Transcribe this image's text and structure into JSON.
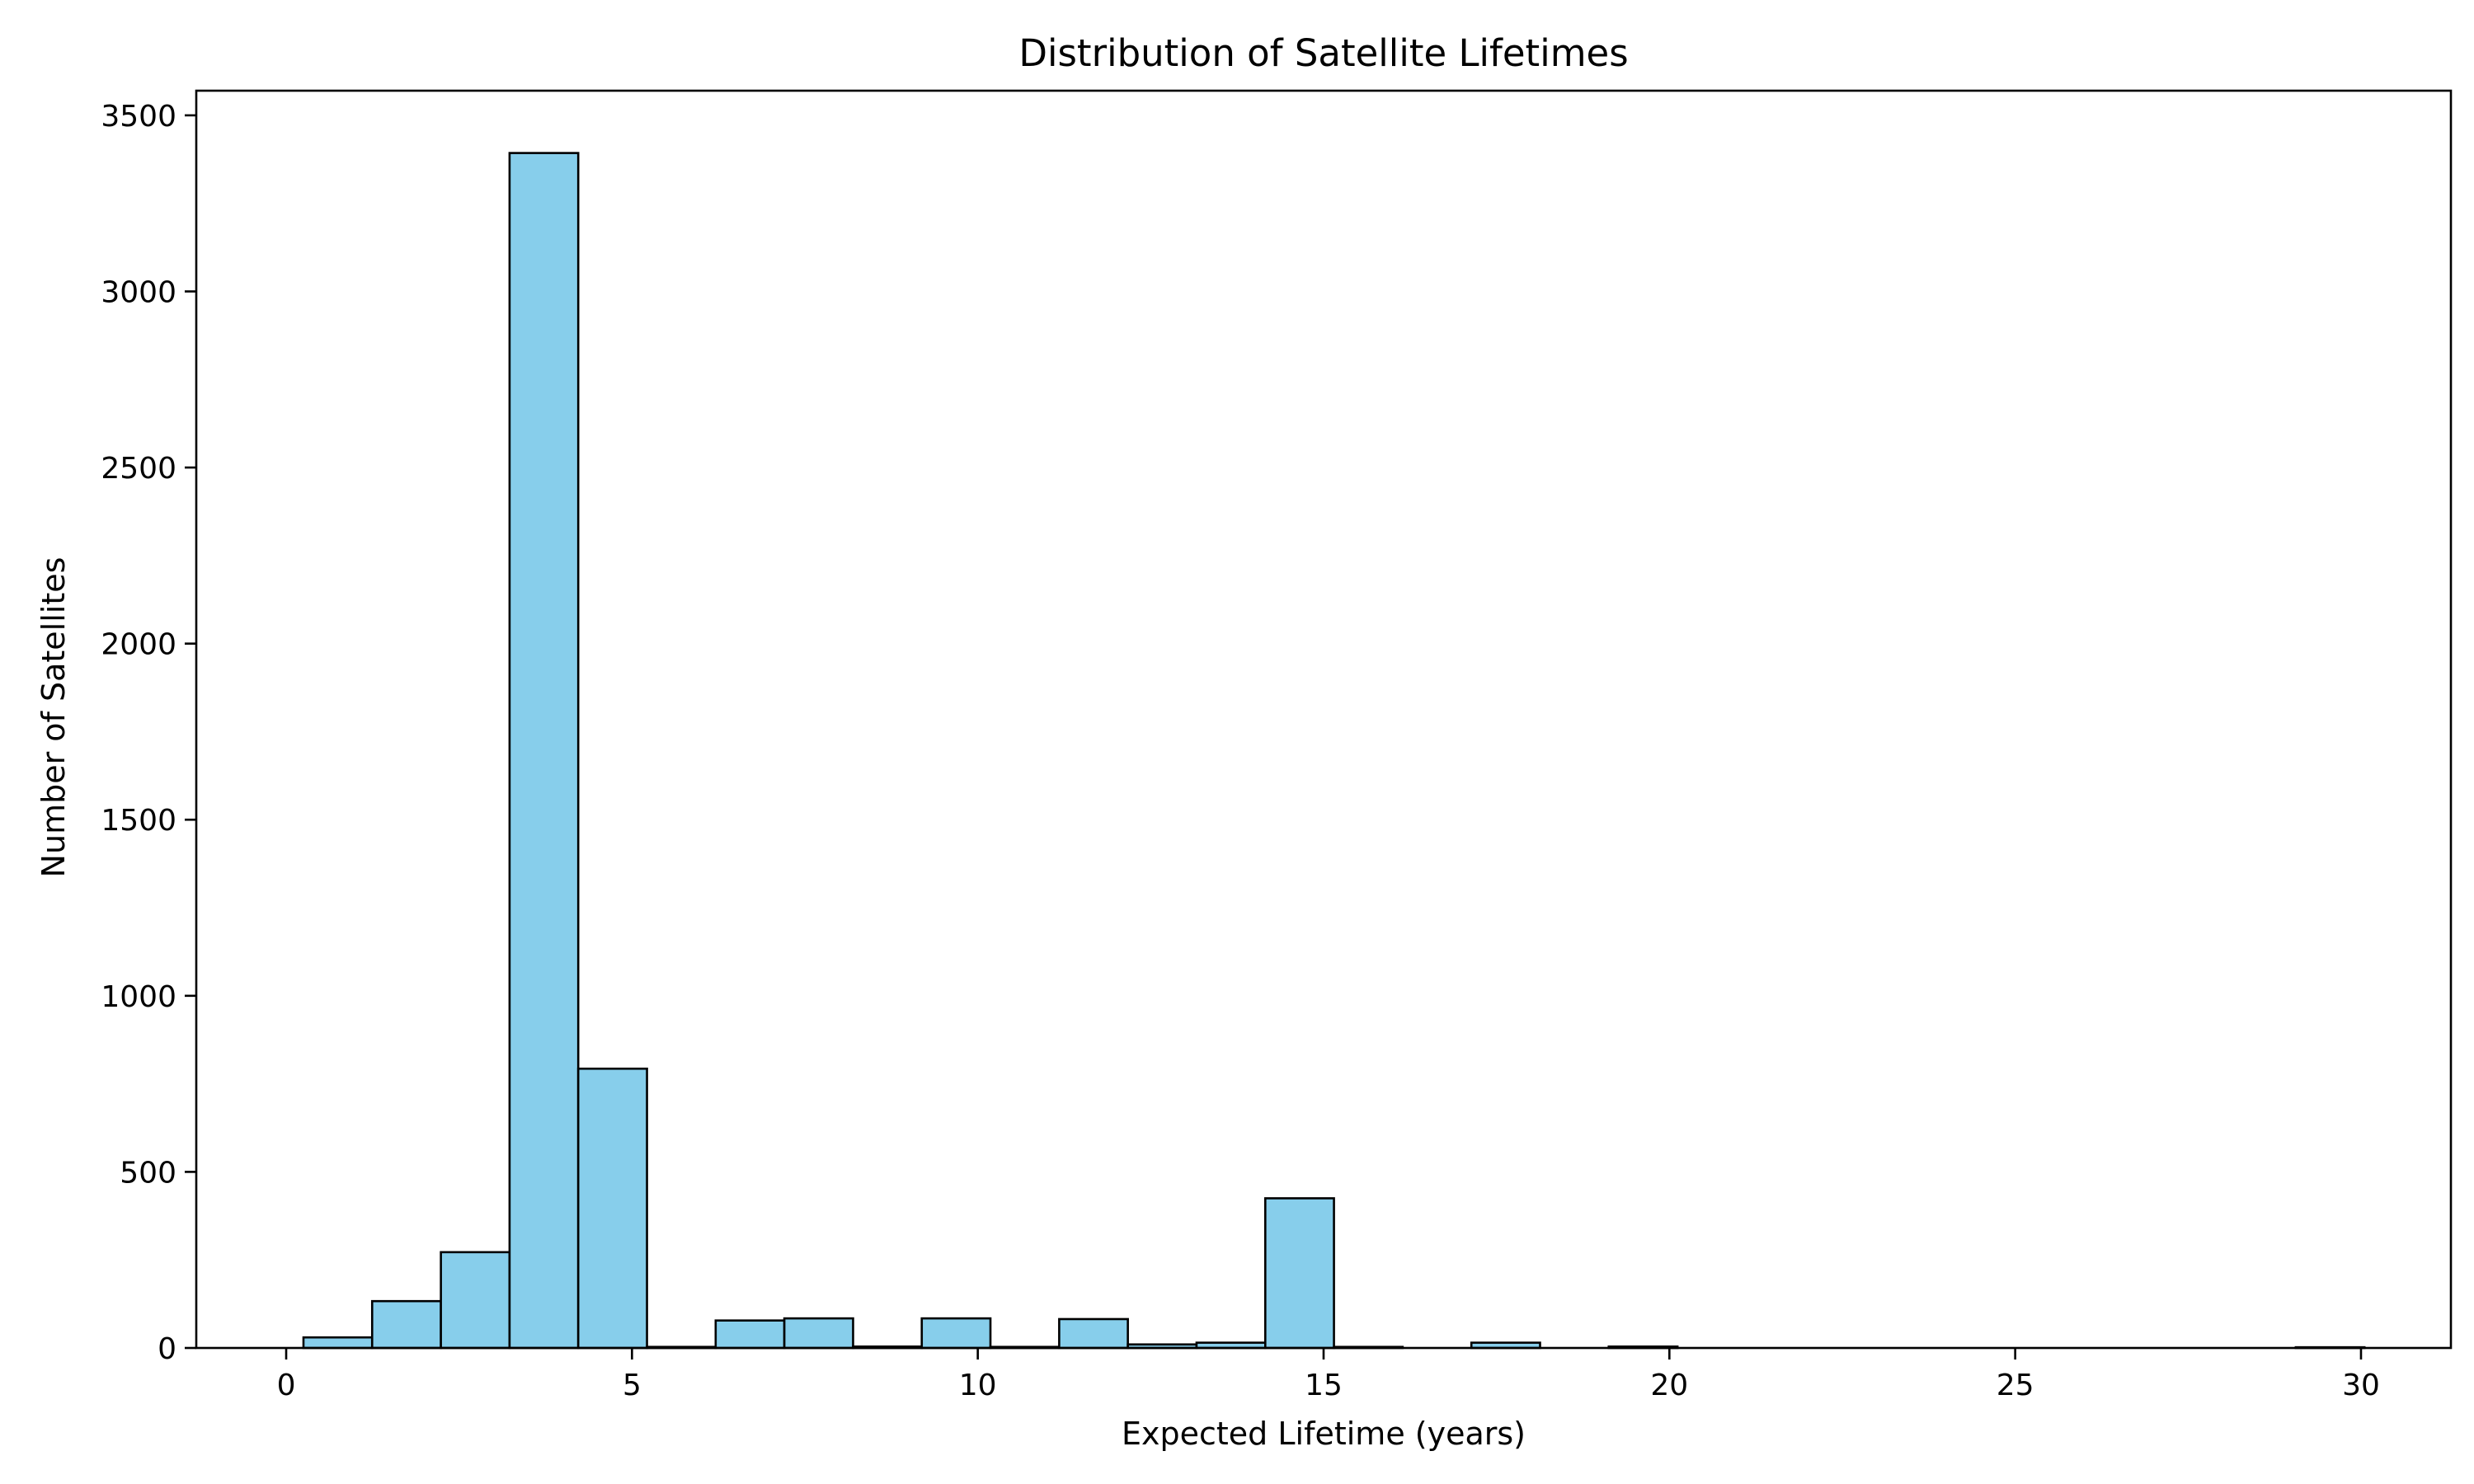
{
  "chart_data": {
    "type": "bar",
    "title": "Distribution of Satellite Lifetimes",
    "xlabel": "Expected Lifetime (years)",
    "ylabel": "Number of Satellites",
    "xlim": [
      -1.3,
      31.3
    ],
    "ylim": [
      0,
      3570
    ],
    "xticks": [
      0,
      5,
      10,
      15,
      20,
      25,
      30
    ],
    "yticks": [
      0,
      500,
      1000,
      1500,
      2000,
      2500,
      3000,
      3500
    ],
    "bin_edges": [
      0.25,
      1.243,
      2.237,
      3.23,
      4.223,
      5.217,
      6.21,
      7.203,
      8.197,
      9.19,
      10.183,
      11.177,
      12.17,
      13.163,
      14.157,
      15.15,
      16.143,
      17.137,
      18.13,
      19.123,
      20.117,
      21.11,
      22.103,
      23.097,
      24.09,
      25.083,
      26.077,
      27.07,
      28.063,
      29.057,
      30.05
    ],
    "values": [
      30,
      133,
      272,
      3393,
      793,
      3,
      78,
      84,
      4,
      84,
      3,
      82,
      10,
      15,
      425,
      3,
      0,
      15,
      0,
      4,
      0,
      0,
      0,
      0,
      0,
      0,
      0,
      0,
      0,
      2
    ],
    "colors": {
      "bar_fill": "#87ceeb",
      "bar_edge": "#000000",
      "axis": "#000000",
      "background": "#ffffff"
    },
    "grid": false,
    "legend": "none"
  }
}
